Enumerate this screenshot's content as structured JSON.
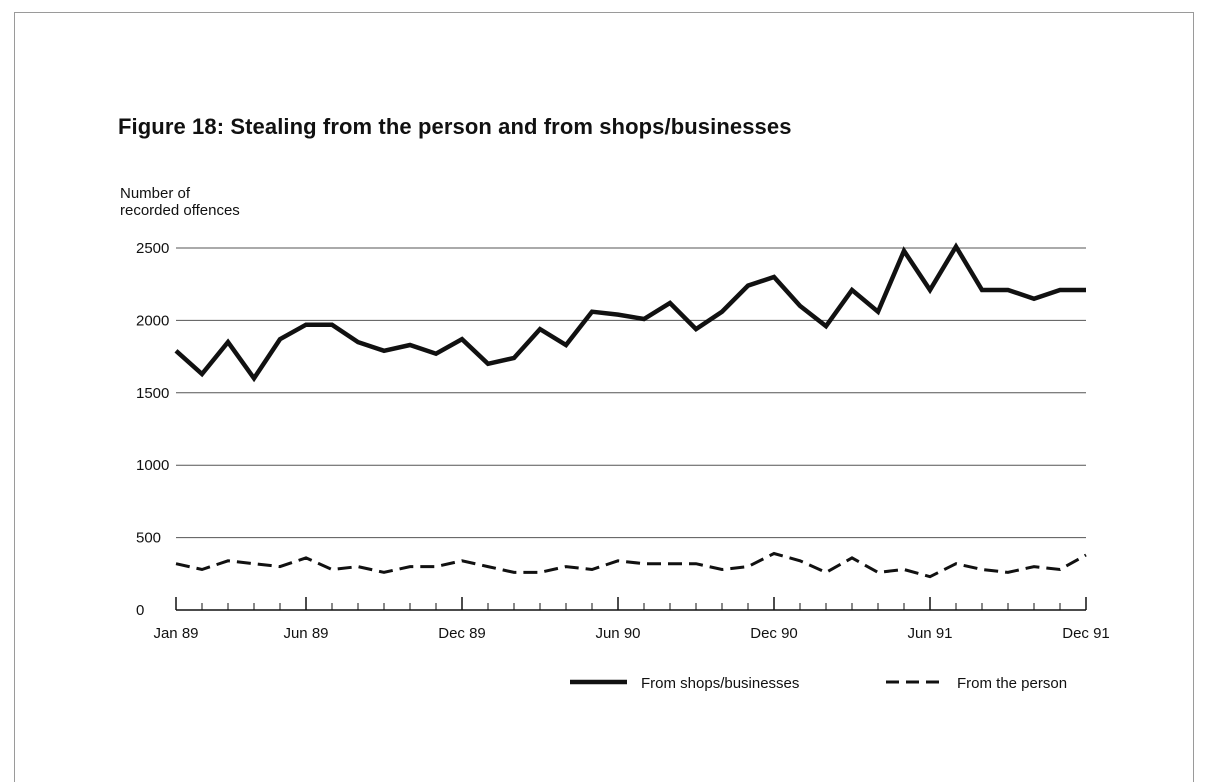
{
  "page": {
    "figure_title": "Figure 18:  Stealing from the person and from shops/businesses"
  },
  "chart_data": {
    "type": "line",
    "title": "Figure 18:  Stealing from the person and from shops/businesses",
    "xlabel": "",
    "ylabel_lines": [
      "Number of",
      "recorded offences"
    ],
    "ylim": [
      0,
      2500
    ],
    "yticks": [
      0,
      500,
      1000,
      1500,
      2000,
      2500
    ],
    "grid": "horizontal",
    "legend_position": "bottom-right",
    "x": [
      "Jan 89",
      "Feb 89",
      "Mar 89",
      "Apr 89",
      "May 89",
      "Jun 89",
      "Jul 89",
      "Aug 89",
      "Sep 89",
      "Oct 89",
      "Nov 89",
      "Dec 89",
      "Jan 90",
      "Feb 90",
      "Mar 90",
      "Apr 90",
      "May 90",
      "Jun 90",
      "Jul 90",
      "Aug 90",
      "Sep 90",
      "Oct 90",
      "Nov 90",
      "Dec 90",
      "Jan 91",
      "Feb 91",
      "Mar 91",
      "Apr 91",
      "May 91",
      "Jun 91",
      "Jul 91",
      "Aug 91",
      "Sep 91",
      "Oct 91",
      "Nov 91",
      "Dec 91"
    ],
    "x_tick_labels": [
      {
        "index": 0,
        "label": "Jan 89"
      },
      {
        "index": 5,
        "label": "Jun 89"
      },
      {
        "index": 11,
        "label": "Dec 89"
      },
      {
        "index": 17,
        "label": "Jun 90"
      },
      {
        "index": 23,
        "label": "Dec 90"
      },
      {
        "index": 29,
        "label": "Jun 91"
      },
      {
        "index": 35,
        "label": "Dec 91"
      }
    ],
    "series": [
      {
        "name": "From shops/businesses",
        "style": "solid",
        "values": [
          1790,
          1630,
          1850,
          1600,
          1870,
          1970,
          1970,
          1850,
          1790,
          1830,
          1770,
          1870,
          1700,
          1740,
          1940,
          1830,
          2060,
          2040,
          2010,
          2120,
          1940,
          2060,
          2240,
          2300,
          2100,
          1960,
          2210,
          2060,
          2480,
          2210,
          2510,
          2210,
          2210,
          2150,
          2210,
          2210
        ]
      },
      {
        "name": "From the person",
        "style": "dashed",
        "values": [
          320,
          280,
          340,
          320,
          300,
          360,
          280,
          300,
          260,
          300,
          300,
          340,
          300,
          260,
          260,
          300,
          280,
          340,
          320,
          320,
          320,
          280,
          300,
          390,
          340,
          260,
          360,
          260,
          280,
          230,
          320,
          280,
          260,
          300,
          280,
          380
        ]
      }
    ],
    "colors": {
      "line": "#111111",
      "grid": "#555555"
    }
  }
}
